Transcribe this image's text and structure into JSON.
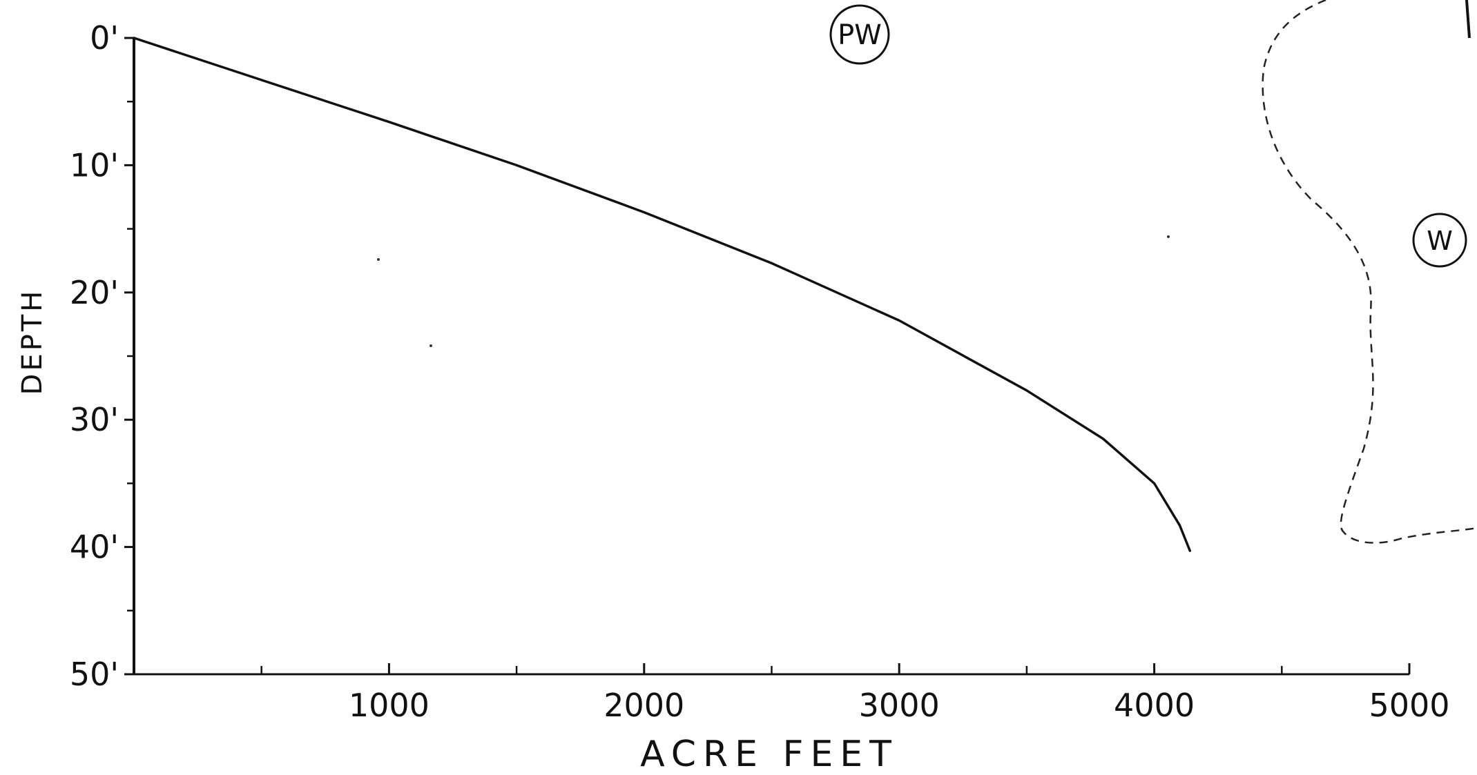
{
  "chart_data": {
    "type": "line",
    "xlabel": "ACRE FEET",
    "ylabel": "DEPTH",
    "xlim": [
      0,
      5000
    ],
    "ylim": [
      0,
      50
    ],
    "y_inverted": true,
    "grid": false,
    "x_ticks_major": [
      1000,
      2000,
      3000,
      4000,
      5000
    ],
    "x_tick_labels": [
      "1000",
      "2000",
      "3000",
      "4000",
      "5000"
    ],
    "x_ticks_minor": [
      500,
      1500,
      2500,
      3500,
      4500
    ],
    "y_ticks_major": [
      0,
      10,
      20,
      30,
      40,
      50
    ],
    "y_tick_labels": [
      "0'",
      "10'",
      "20'",
      "30'",
      "40'",
      "50'"
    ],
    "y_ticks_minor": [
      5,
      15,
      25,
      35,
      45
    ],
    "series": [
      {
        "x": [
          0,
          500,
          1000,
          1500,
          2000,
          2500,
          3000,
          3500,
          3800,
          4000,
          4100,
          4140
        ],
        "y": [
          0,
          3.3,
          6.6,
          10.0,
          13.7,
          17.7,
          22.2,
          27.7,
          31.5,
          35.0,
          38.3,
          40.3
        ]
      }
    ],
    "annotations": [
      {
        "label": "PW",
        "shape": "circle"
      },
      {
        "label": "W",
        "shape": "circle"
      }
    ],
    "line_color": "#111111"
  }
}
